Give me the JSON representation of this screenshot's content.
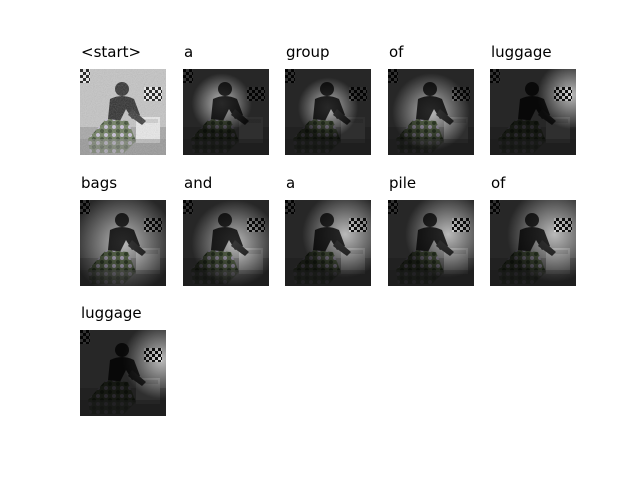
{
  "panels": [
    {
      "title": "<start>"
    },
    {
      "title": "a"
    },
    {
      "title": "group"
    },
    {
      "title": "of"
    },
    {
      "title": "luggage"
    },
    {
      "title": "bags"
    },
    {
      "title": "and"
    },
    {
      "title": "a"
    },
    {
      "title": "pile"
    },
    {
      "title": "of"
    },
    {
      "title": "luggage"
    }
  ]
}
